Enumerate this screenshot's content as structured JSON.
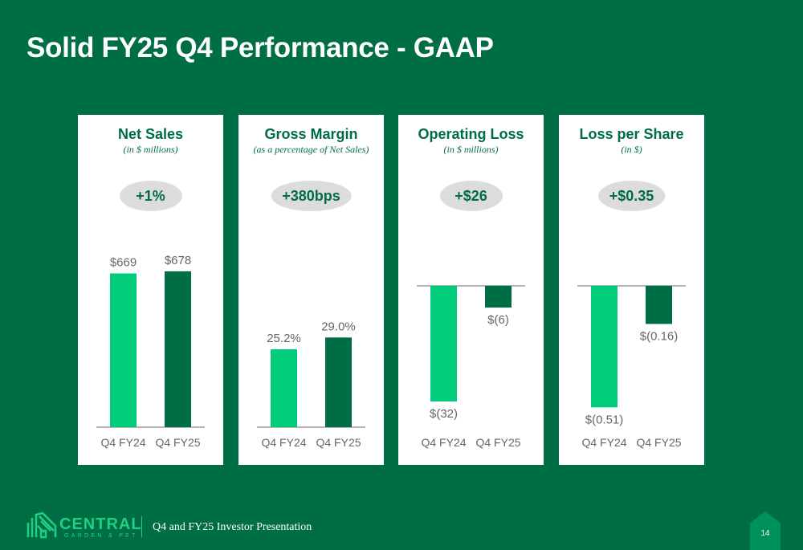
{
  "title": "Solid FY25 Q4 Performance - GAAP",
  "colors": {
    "background": "#006e44",
    "q4fy24": "#00cc7a",
    "q4fy25": "#006e44",
    "pill": "#dcdcdc"
  },
  "chart_data": [
    {
      "type": "bar",
      "title": "Net Sales",
      "subtitle": "(in $ millions)",
      "change": "+1%",
      "categories": [
        "Q4 FY24",
        "Q4 FY25"
      ],
      "values": [
        669,
        678
      ],
      "labels": [
        "$669",
        "$678"
      ],
      "ylim": [
        0,
        800
      ]
    },
    {
      "type": "bar",
      "title": "Gross Margin",
      "subtitle": "(as a percentage of Net Sales)",
      "change": "+380bps",
      "categories": [
        "Q4 FY24",
        "Q4 FY25"
      ],
      "values": [
        25.2,
        29.0
      ],
      "labels": [
        "25.2%",
        "29.0%"
      ],
      "ylim": [
        0,
        40
      ]
    },
    {
      "type": "bar",
      "title": "Operating Loss",
      "subtitle": "(in $ millions)",
      "change": "+$26",
      "categories": [
        "Q4 FY24",
        "Q4 FY25"
      ],
      "values": [
        -32,
        -6
      ],
      "labels": [
        "$(32)",
        "$(6)"
      ],
      "ylim": [
        -40,
        0
      ]
    },
    {
      "type": "bar",
      "title": "Loss per Share",
      "subtitle": "(in $)",
      "change": "+$0.35",
      "categories": [
        "Q4 FY24",
        "Q4 FY25"
      ],
      "values": [
        -0.51,
        -0.16
      ],
      "labels": [
        "$(0.51)",
        "$(0.16)"
      ],
      "ylim": [
        -0.6,
        0
      ]
    }
  ],
  "footer": {
    "brand": "CENTRAL",
    "brand_sub": "GARDEN & PET",
    "presentation": "Q4 and FY25 Investor Presentation",
    "page": "14"
  }
}
